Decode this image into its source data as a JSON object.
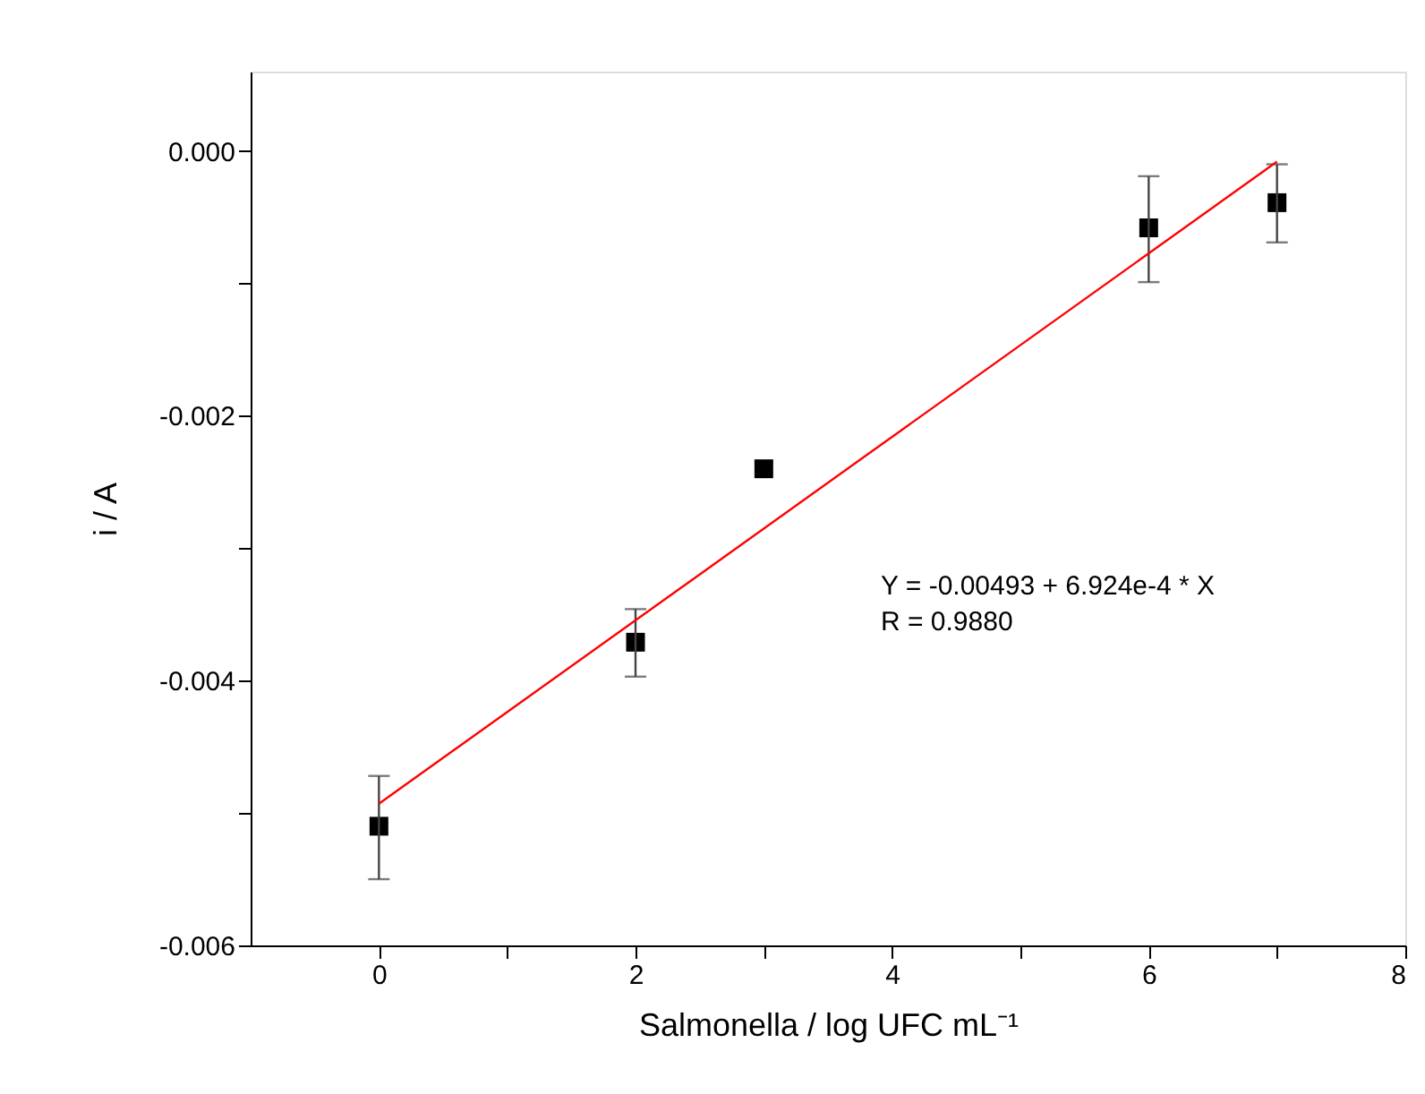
{
  "chart_data": {
    "type": "scatter",
    "xlabel": "Salmonella / log UFC mL⁻¹",
    "ylabel": "i / A",
    "xlim": [
      -1,
      8
    ],
    "ylim": [
      -0.006,
      0.0006
    ],
    "xticks": [
      0,
      {
        "value": 1,
        "label": null
      },
      2,
      {
        "value": 3,
        "label": null
      },
      4,
      {
        "value": 5,
        "label": null
      },
      6,
      {
        "value": 7,
        "label": null
      },
      8
    ],
    "yticks": [
      {
        "value": -0.006,
        "label": "-0.006"
      },
      {
        "value": -0.005,
        "label": null
      },
      {
        "value": -0.004,
        "label": "-0.004"
      },
      {
        "value": -0.003,
        "label": null
      },
      {
        "value": -0.002,
        "label": "-0.002"
      },
      {
        "value": -0.001,
        "label": null
      },
      {
        "value": 0,
        "label": "0.000"
      }
    ],
    "grid": false,
    "series": [
      {
        "color": "#000000",
        "marker": "square",
        "x": [
          0,
          2,
          3,
          6,
          7
        ],
        "values": [
          -0.0051,
          -0.00371,
          -0.0024,
          -0.00058,
          -0.00039
        ],
        "errors": [
          [
            -0.0055,
            -0.00472
          ],
          [
            -0.00397,
            -0.00346
          ],
          null,
          [
            -0.00099,
            -0.00019
          ],
          [
            -0.00069,
            -0.0001
          ]
        ]
      },
      {
        "type": "line",
        "color": "#ff0000",
        "line_style": "solid",
        "x": [
          0,
          7
        ],
        "values": [
          -0.00493,
          -8e-05
        ]
      }
    ],
    "annotations": [
      "Y = -0.00493 + 6.924e-4 * X",
      "R = 0.9880"
    ]
  }
}
